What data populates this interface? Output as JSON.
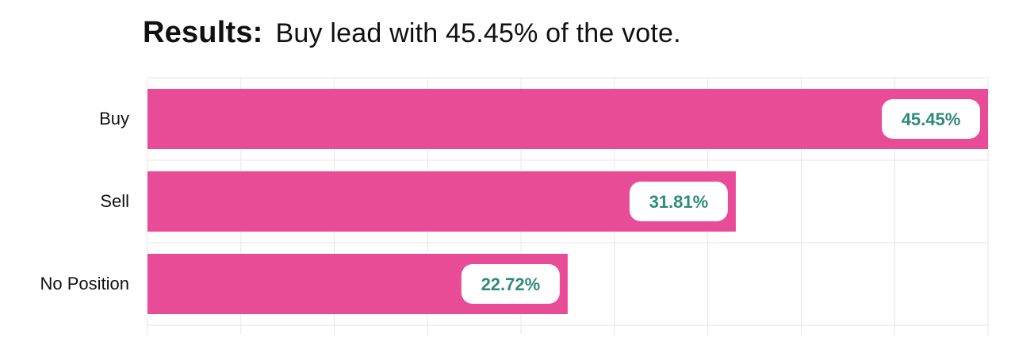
{
  "header": {
    "results_label": "Results:",
    "results_text": "Buy lead with 45.45% of the vote."
  },
  "chart_data": {
    "type": "bar",
    "orientation": "horizontal",
    "categories": [
      "Buy",
      "Sell",
      "No Position"
    ],
    "values": [
      45.45,
      31.81,
      22.72
    ],
    "value_labels": [
      "45.45%",
      "31.81%",
      "22.72%"
    ],
    "xlim": [
      0,
      45.45
    ],
    "grid": true,
    "legend": "none"
  },
  "colors": {
    "bar": "#e84c97",
    "value_text": "#2e8b7a",
    "grid": "#e6e6e6"
  }
}
